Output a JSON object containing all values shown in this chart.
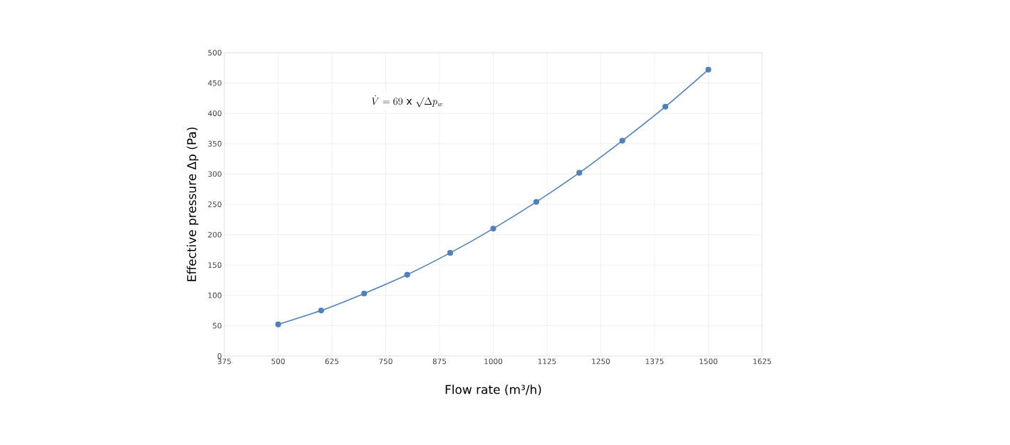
{
  "chart_data": {
    "type": "line",
    "xlabel": "Flow rate (m³/h)",
    "ylabel": "Effective pressure Δp (Pa)",
    "x": [
      500,
      600,
      700,
      800,
      900,
      1000,
      1100,
      1200,
      1300,
      1400,
      1500
    ],
    "series": [
      {
        "color": "#4f81bd",
        "values": [
          52,
          75,
          103,
          134,
          170,
          210,
          254,
          302,
          355,
          411,
          472
        ]
      }
    ],
    "xlim": [
      375,
      1625
    ],
    "xticks": [
      375,
      500,
      625,
      750,
      875,
      1000,
      1125,
      1250,
      1375,
      1500,
      1625
    ],
    "ylim": [
      0,
      500
    ],
    "yticks": [
      0,
      50,
      100,
      150,
      200,
      250,
      300,
      350,
      400,
      450,
      500
    ],
    "grid": true,
    "marker": "circle",
    "line_style": "solid",
    "annotations": [
      "\\dot{V} = 69\\ \\mathrm{x}\\ \\surd\\Delta p_{w}"
    ]
  }
}
